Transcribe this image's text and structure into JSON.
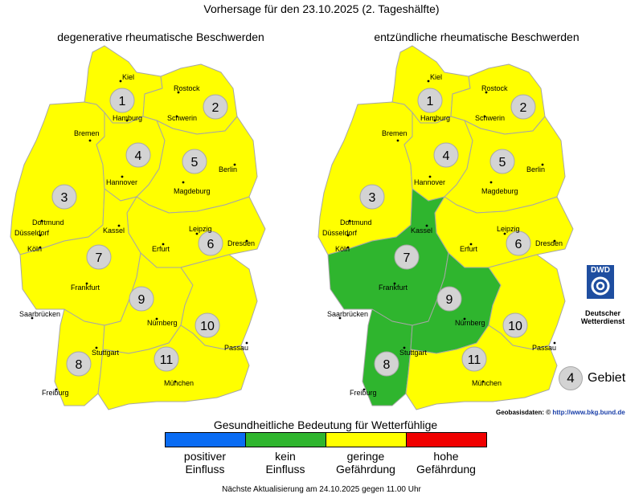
{
  "title": "Vorhersage für den 23.10.2025 (2. Tageshälfte)",
  "colors": {
    "positive": "#0a6cf3",
    "none": "#2fb52e",
    "low": "#ffff00",
    "high": "#f00000",
    "region_circle": "#d3d3d3",
    "border": "#a6a6a6"
  },
  "maps": [
    {
      "title": "degenerative rheumatische Beschwerden",
      "region_levels": {
        "1": "low",
        "2": "low",
        "3": "low",
        "4": "low",
        "5": "low",
        "6": "low",
        "7": "low",
        "8": "low",
        "9": "low",
        "10": "low",
        "11": "low"
      }
    },
    {
      "title": "entzündliche rheumatische Beschwerden",
      "region_levels": {
        "1": "low",
        "2": "low",
        "3": "low",
        "4": "low",
        "5": "low",
        "6": "low",
        "7": "none",
        "8": "none",
        "9": "none",
        "10": "low",
        "11": "low"
      }
    }
  ],
  "region_numbers": [
    "1",
    "2",
    "3",
    "4",
    "5",
    "6",
    "7",
    "8",
    "9",
    "10",
    "11"
  ],
  "cities": [
    "Kiel",
    "Rostock",
    "Hamburg",
    "Schwerin",
    "Bremen",
    "Berlin",
    "Hannover",
    "Magdeburg",
    "Dortmund",
    "Düsseldorf",
    "Kassel",
    "Leipzig",
    "Köln",
    "Dresden",
    "Erfurt",
    "Frankfurt",
    "Saarbrücken",
    "Nürnberg",
    "Passau",
    "Stuttgart",
    "Freiburg",
    "München"
  ],
  "dwd_logo": {
    "abbr": "DWD",
    "name_line1": "Deutscher",
    "name_line2": "Wetterdienst"
  },
  "legend_sample": {
    "number": "4",
    "label": "Gebiet"
  },
  "geodata_label": "Geobasisdaten: ©",
  "geodata_url": "http://www.bkg.bund.de",
  "legend": {
    "title": "Gesundheitliche Bedeutung für Wetterfühlige",
    "items": [
      {
        "key": "positive",
        "line1": "positiver",
        "line2": "Einfluss"
      },
      {
        "key": "none",
        "line1": "kein",
        "line2": "Einfluss"
      },
      {
        "key": "low",
        "line1": "geringe",
        "line2": "Gefährdung"
      },
      {
        "key": "high",
        "line1": "hohe",
        "line2": "Gefährdung"
      }
    ]
  },
  "footer": "Nächste Aktualisierung am 24.10.2025 gegen 11.00 Uhr"
}
